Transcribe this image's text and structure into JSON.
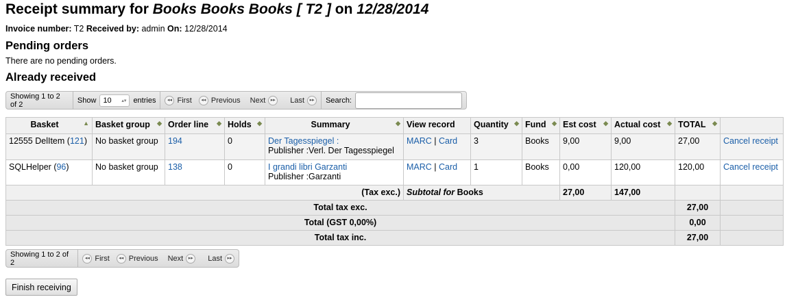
{
  "title": {
    "prefix": "Receipt summary for ",
    "vendor": "Books Books Books [ T2 ]",
    "on": " on ",
    "date": "12/28/2014"
  },
  "info": {
    "invoice_label": "Invoice number:",
    "invoice": "T2",
    "received_label": "Received by:",
    "received": "admin",
    "on_label": "On:",
    "on": "12/28/2014"
  },
  "pending": {
    "heading": "Pending orders",
    "empty": "There are no pending orders."
  },
  "received": {
    "heading": "Already received"
  },
  "pager": {
    "showing": "Showing 1 to 2 of 2",
    "show": "Show",
    "entries_value": "10",
    "entries": "entries",
    "first": "First",
    "previous": "Previous",
    "next": "Next",
    "last": "Last",
    "search": "Search:",
    "search_value": ""
  },
  "columns": [
    "Basket",
    "Basket group",
    "Order line",
    "Holds",
    "Summary",
    "View record",
    "Quantity",
    "Fund",
    "Est cost",
    "Actual cost",
    "TOTAL"
  ],
  "sorted_column": "Basket",
  "rows": [
    {
      "basket": "12555 DelItem",
      "basket_id": "121",
      "group": "No basket group",
      "order": "194",
      "holds": "0",
      "title": "Der Tagesspiegel :",
      "publisher": "Publisher :Verl. Der Tagesspiegel",
      "marc": "MARC",
      "card": "Card",
      "qty": "3",
      "fund": "Books",
      "est": "9,00",
      "actual": "9,00",
      "total": "27,00",
      "cancel": "Cancel receipt"
    },
    {
      "basket": "SQLHelper",
      "basket_id": "96",
      "group": "No basket group",
      "order": "138",
      "holds": "0",
      "title": "I grandi libri Garzanti",
      "publisher": "Publisher :Garzanti",
      "marc": "MARC",
      "card": "Card",
      "qty": "1",
      "fund": "Books",
      "est": "0,00",
      "actual": "120,00",
      "total": "120,00",
      "cancel": "Cancel receipt"
    }
  ],
  "subtotal": {
    "tax": "(Tax exc.)",
    "label": "Subtotal for",
    "fund": "Books",
    "est": "27,00",
    "actual": "147,00"
  },
  "totals": [
    {
      "label": "Total tax exc.",
      "value": "27,00"
    },
    {
      "label": "Total (GST 0,00%)",
      "value": "0,00"
    },
    {
      "label": "Total tax inc.",
      "value": "27,00"
    }
  ],
  "finish": "Finish receiving"
}
